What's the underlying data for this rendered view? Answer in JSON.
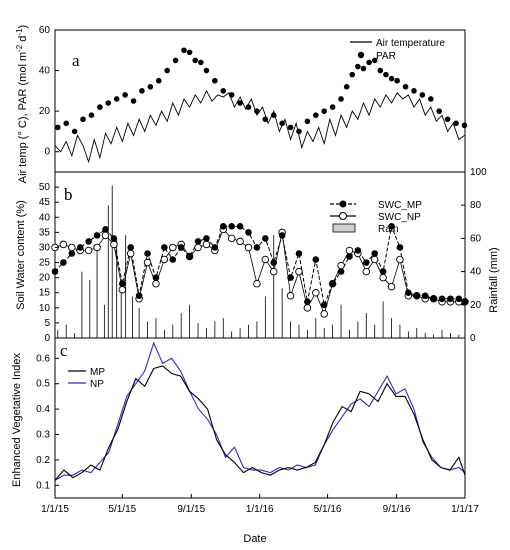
{
  "chart_data": [
    {
      "panel": "a",
      "type": "line+scatter",
      "ylabel": "Air temp (° C), PAR (mol m",
      "ylabel_sup1": "-2",
      "ylabel_mid": " d",
      "ylabel_sup2": "-1",
      "ylabel_end": ")",
      "ylim": [
        -10,
        60
      ],
      "yticks": [
        0,
        20,
        40,
        60
      ],
      "legend": [
        "Air temperature",
        "PAR"
      ],
      "series": [
        {
          "name": "Air temperature",
          "x": [
            0,
            10,
            20,
            30,
            40,
            50,
            60,
            70,
            80,
            90,
            100,
            110,
            120,
            130,
            140,
            150,
            160,
            170,
            180,
            190,
            200,
            210,
            220,
            230,
            240,
            250,
            260,
            270,
            280,
            290,
            300,
            310,
            320,
            330,
            340,
            350,
            360,
            370,
            380,
            390,
            400,
            410,
            420,
            430,
            440,
            450,
            460,
            470,
            480,
            490,
            500,
            510,
            520,
            530,
            540,
            550,
            560,
            570,
            580,
            590,
            600,
            610,
            620,
            630,
            640,
            650,
            660,
            670,
            680,
            690,
            700,
            710,
            720,
            730
          ],
          "values": [
            3,
            0,
            5,
            -2,
            8,
            3,
            -5,
            6,
            -3,
            9,
            4,
            12,
            5,
            14,
            8,
            16,
            10,
            18,
            13,
            20,
            15,
            24,
            18,
            26,
            22,
            28,
            24,
            30,
            25,
            28,
            27,
            29,
            22,
            27,
            21,
            26,
            18,
            22,
            14,
            20,
            10,
            16,
            6,
            14,
            2,
            10,
            5,
            12,
            4,
            16,
            8,
            18,
            12,
            20,
            16,
            24,
            18,
            26,
            22,
            28,
            24,
            29,
            26,
            28,
            22,
            26,
            18,
            22,
            15,
            18,
            10,
            14,
            6,
            8
          ]
        },
        {
          "name": "PAR",
          "x": [
            5,
            20,
            35,
            50,
            65,
            80,
            95,
            110,
            125,
            140,
            155,
            170,
            185,
            200,
            215,
            230,
            240,
            250,
            260,
            270,
            285,
            300,
            315,
            330,
            345,
            360,
            375,
            390,
            405,
            420,
            435,
            450,
            465,
            480,
            495,
            510,
            520,
            530,
            540,
            550,
            560,
            570,
            580,
            590,
            600,
            610,
            625,
            640,
            655,
            670,
            685,
            700,
            715,
            730
          ],
          "values": [
            12,
            14,
            10,
            16,
            18,
            22,
            24,
            26,
            28,
            25,
            30,
            32,
            35,
            40,
            45,
            50,
            49,
            45,
            44,
            40,
            35,
            30,
            28,
            24,
            22,
            20,
            16,
            18,
            14,
            12,
            10,
            15,
            18,
            20,
            22,
            26,
            32,
            38,
            42,
            41,
            44,
            45,
            40,
            38,
            36,
            35,
            32,
            30,
            28,
            26,
            20,
            16,
            14,
            13
          ]
        }
      ]
    },
    {
      "panel": "b",
      "type": "line+bar",
      "ylabel": "Soil Water content (%)",
      "ylabel_right": "Rainfall (mm)",
      "ylim": [
        0,
        55
      ],
      "yticks": [
        0,
        5,
        10,
        15,
        20,
        25,
        30,
        35,
        40,
        45,
        50
      ],
      "ylim_right": [
        0,
        100
      ],
      "yticks_right": [
        0,
        20,
        40,
        60,
        80,
        100
      ],
      "legend": [
        "SWC_MP",
        "SWC_NP",
        "Rain"
      ],
      "series": [
        {
          "name": "SWC_MP",
          "x": [
            0,
            15,
            30,
            45,
            60,
            75,
            90,
            105,
            120,
            135,
            150,
            165,
            180,
            195,
            210,
            225,
            240,
            255,
            270,
            285,
            300,
            315,
            330,
            345,
            360,
            375,
            390,
            405,
            420,
            435,
            450,
            465,
            480,
            495,
            510,
            525,
            540,
            555,
            570,
            585,
            600,
            615,
            630,
            645,
            660,
            675,
            690,
            705,
            720,
            731
          ],
          "values": [
            22,
            25,
            28,
            30,
            32,
            34,
            36,
            33,
            18,
            30,
            14,
            28,
            20,
            30,
            26,
            30,
            27,
            32,
            33,
            30,
            37,
            37,
            37,
            35,
            30,
            33,
            25,
            34,
            20,
            28,
            12,
            26,
            11,
            18,
            22,
            27,
            29,
            25,
            28,
            22,
            37,
            30,
            15,
            14,
            14,
            13,
            13,
            13,
            13,
            12
          ]
        },
        {
          "name": "SWC_NP",
          "x": [
            0,
            15,
            30,
            45,
            60,
            75,
            90,
            105,
            120,
            135,
            150,
            165,
            180,
            195,
            210,
            225,
            240,
            255,
            270,
            285,
            300,
            315,
            330,
            345,
            360,
            375,
            390,
            405,
            420,
            435,
            450,
            465,
            480,
            495,
            510,
            525,
            540,
            555,
            570,
            585,
            600,
            615,
            630,
            645,
            660,
            675,
            690,
            705,
            720,
            731
          ],
          "values": [
            30,
            31,
            30,
            29,
            29,
            30,
            34,
            31,
            16,
            28,
            13,
            25,
            18,
            26,
            30,
            31,
            27,
            30,
            31,
            29,
            36,
            33,
            32,
            30,
            18,
            26,
            22,
            35,
            14,
            22,
            10,
            15,
            8,
            18,
            24,
            29,
            28,
            22,
            26,
            20,
            17,
            26,
            14,
            14,
            13,
            13,
            12,
            12,
            12,
            12
          ]
        },
        {
          "name": "Rain",
          "x": [
            5,
            20,
            35,
            48,
            62,
            75,
            88,
            95,
            102,
            110,
            118,
            126,
            138,
            150,
            165,
            180,
            195,
            210,
            225,
            240,
            255,
            270,
            285,
            300,
            315,
            330,
            345,
            360,
            375,
            390,
            405,
            420,
            435,
            450,
            465,
            480,
            495,
            510,
            525,
            540,
            555,
            570,
            585,
            600,
            615,
            630,
            645,
            660,
            675,
            690,
            705,
            720
          ],
          "values": [
            5,
            8,
            3,
            40,
            35,
            55,
            20,
            80,
            92,
            60,
            30,
            62,
            25,
            18,
            10,
            12,
            5,
            8,
            15,
            20,
            9,
            6,
            10,
            12,
            4,
            6,
            8,
            10,
            25,
            62,
            30,
            10,
            8,
            5,
            12,
            6,
            8,
            20,
            5,
            10,
            15,
            8,
            22,
            12,
            8,
            4,
            6,
            3,
            2,
            5,
            3,
            2
          ]
        }
      ]
    },
    {
      "panel": "c",
      "type": "line",
      "ylabel": "Enhanced Vegetative Index",
      "xlabel": "Date",
      "ylim": [
        0.05,
        0.68
      ],
      "yticks": [
        0.1,
        0.2,
        0.3,
        0.4,
        0.5,
        0.6
      ],
      "xticks": [
        "1/1/15",
        "5/1/15",
        "9/1/15",
        "1/1/16",
        "5/1/16",
        "9/1/16",
        "1/1/17"
      ],
      "legend": [
        "MP",
        "NP"
      ],
      "series": [
        {
          "name": "MP",
          "x": [
            0,
            16,
            32,
            48,
            64,
            80,
            96,
            112,
            128,
            144,
            160,
            176,
            192,
            208,
            224,
            240,
            256,
            272,
            288,
            304,
            320,
            336,
            352,
            368,
            384,
            400,
            416,
            432,
            448,
            464,
            480,
            496,
            512,
            528,
            544,
            560,
            576,
            592,
            608,
            624,
            640,
            656,
            672,
            688,
            704,
            720,
            731
          ],
          "values": [
            0.12,
            0.16,
            0.13,
            0.15,
            0.18,
            0.16,
            0.25,
            0.32,
            0.43,
            0.52,
            0.49,
            0.56,
            0.57,
            0.54,
            0.53,
            0.47,
            0.44,
            0.4,
            0.28,
            0.22,
            0.19,
            0.15,
            0.17,
            0.15,
            0.14,
            0.16,
            0.17,
            0.16,
            0.17,
            0.19,
            0.26,
            0.35,
            0.41,
            0.39,
            0.47,
            0.46,
            0.43,
            0.5,
            0.45,
            0.45,
            0.38,
            0.28,
            0.2,
            0.17,
            0.16,
            0.21,
            0.14
          ]
        },
        {
          "name": "NP",
          "x": [
            0,
            16,
            32,
            48,
            64,
            80,
            96,
            112,
            128,
            144,
            160,
            176,
            192,
            208,
            224,
            240,
            256,
            272,
            288,
            304,
            320,
            336,
            352,
            368,
            384,
            400,
            416,
            432,
            448,
            464,
            480,
            496,
            512,
            528,
            544,
            560,
            576,
            592,
            608,
            624,
            640,
            656,
            672,
            688,
            704,
            720,
            731
          ],
          "values": [
            0.12,
            0.14,
            0.14,
            0.16,
            0.15,
            0.19,
            0.23,
            0.34,
            0.45,
            0.5,
            0.55,
            0.66,
            0.58,
            0.6,
            0.55,
            0.47,
            0.4,
            0.36,
            0.3,
            0.21,
            0.25,
            0.17,
            0.16,
            0.16,
            0.15,
            0.17,
            0.16,
            0.18,
            0.17,
            0.18,
            0.26,
            0.32,
            0.37,
            0.42,
            0.44,
            0.41,
            0.47,
            0.53,
            0.46,
            0.48,
            0.4,
            0.27,
            0.21,
            0.17,
            0.16,
            0.17,
            0.15
          ]
        }
      ]
    }
  ],
  "panel_letters": {
    "a": "a",
    "b": "b",
    "c": "c"
  },
  "colors": {
    "mp": "#000000",
    "np": "#2a2fc7",
    "rain_fill": "#cfcfcf"
  }
}
